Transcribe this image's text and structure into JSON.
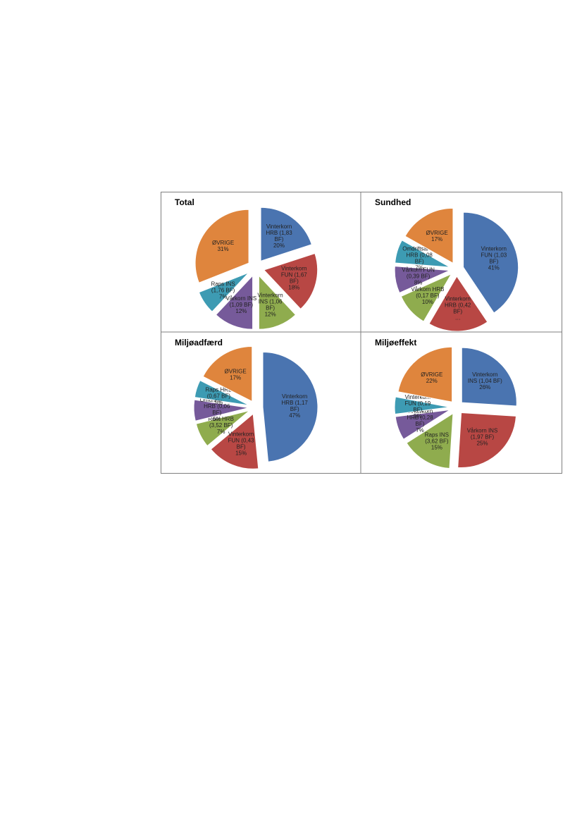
{
  "chart_data": [
    {
      "type": "pie",
      "title": "Total",
      "slices": [
        {
          "label": [
            "Vinterkorn",
            "HRB (1,83",
            "BF)",
            "20%"
          ],
          "value": 20,
          "color": "#4a74b0"
        },
        {
          "label": [
            "Vinterkorn",
            "FUN (1,67",
            "BF)",
            "18%"
          ],
          "value": 18,
          "color": "#b84744"
        },
        {
          "label": [
            "Vinterkorn",
            "INS (1,06",
            "BF)",
            "12%"
          ],
          "value": 12,
          "color": "#8fac4e"
        },
        {
          "label": [
            "Vårkorn INS",
            "(1,09 BF)",
            "12%"
          ],
          "value": 12,
          "color": "#765a9a"
        },
        {
          "label": [
            "Raps INS",
            "(1,76 BF)",
            "7%"
          ],
          "value": 7,
          "color": "#3d9bb3"
        },
        {
          "label": [
            "ØVRIGE",
            "31%"
          ],
          "value": 31,
          "color": "#df853d"
        }
      ]
    },
    {
      "type": "pie",
      "title": "Sundhed",
      "slices": [
        {
          "label": [
            "Vinterkorn",
            "FUN (1,03",
            "BF)",
            "41%"
          ],
          "value": 41,
          "color": "#4a74b0"
        },
        {
          "label": [
            "Vinterkorn",
            "HRB (0,42",
            "BF)",
            "…"
          ],
          "value": 18,
          "color": "#b84744"
        },
        {
          "label": [
            "Vårkorn HRB",
            "(0,17 BF)",
            "10%"
          ],
          "value": 10,
          "color": "#8fac4e"
        },
        {
          "label": [
            "Vårkorn FUN",
            "(0,39 BF)",
            "8%"
          ],
          "value": 8,
          "color": "#765a9a"
        },
        {
          "label": [
            "Omdriftsareal",
            "HRB (0,08",
            "BF)",
            "7%"
          ],
          "value": 7,
          "color": "#3d9bb3"
        },
        {
          "label": [
            "ØVRIGE",
            "17%"
          ],
          "value": 17,
          "color": "#df853d"
        }
      ]
    },
    {
      "type": "pie",
      "title": "Miljøadfærd",
      "slices": [
        {
          "label": [
            "Vinterkorn",
            "HRB (1,17",
            "BF)",
            "47%"
          ],
          "value": 47,
          "color": "#4a74b0"
        },
        {
          "label": [
            "Vinterkorn",
            "FUN (0,43",
            "BF)",
            "15%"
          ],
          "value": 15,
          "color": "#b84744"
        },
        {
          "label": [
            "Roer HRB",
            "(3,52 BF)",
            "7%"
          ],
          "value": 7,
          "color": "#8fac4e"
        },
        {
          "label": [
            "Omdriftsareal",
            "HRB (0,06",
            "BF)",
            "6%"
          ],
          "value": 6,
          "color": "#765a9a"
        },
        {
          "label": [
            "Raps HRB",
            "(0,67 BF)",
            "5%"
          ],
          "value": 5,
          "color": "#3d9bb3"
        },
        {
          "label": [
            "ØVRIGE",
            "17%"
          ],
          "value": 17,
          "color": "#df853d"
        }
      ]
    },
    {
      "type": "pie",
      "title": "Miljøeffekt",
      "slices": [
        {
          "label": [
            "Vinterkorn",
            "INS (1,04 BF)",
            "26%"
          ],
          "value": 26,
          "color": "#4a74b0"
        },
        {
          "label": [
            "Vårkorn INS",
            "(1,97 BF)",
            "25%"
          ],
          "value": 25,
          "color": "#b84744"
        },
        {
          "label": [
            "Raps INS",
            "(3,62 BF)",
            "15%"
          ],
          "value": 15,
          "color": "#8fac4e"
        },
        {
          "label": [
            "Vinterkorn",
            "HRB (0,28",
            "BF)",
            "7%"
          ],
          "value": 7,
          "color": "#765a9a"
        },
        {
          "label": [
            "Vinterkorn",
            "FUN (0,19",
            "BF)",
            "5%"
          ],
          "value": 5,
          "color": "#3d9bb3"
        },
        {
          "label": [
            "ØVRIGE",
            "22%"
          ],
          "value": 22,
          "color": "#df853d"
        }
      ]
    }
  ]
}
